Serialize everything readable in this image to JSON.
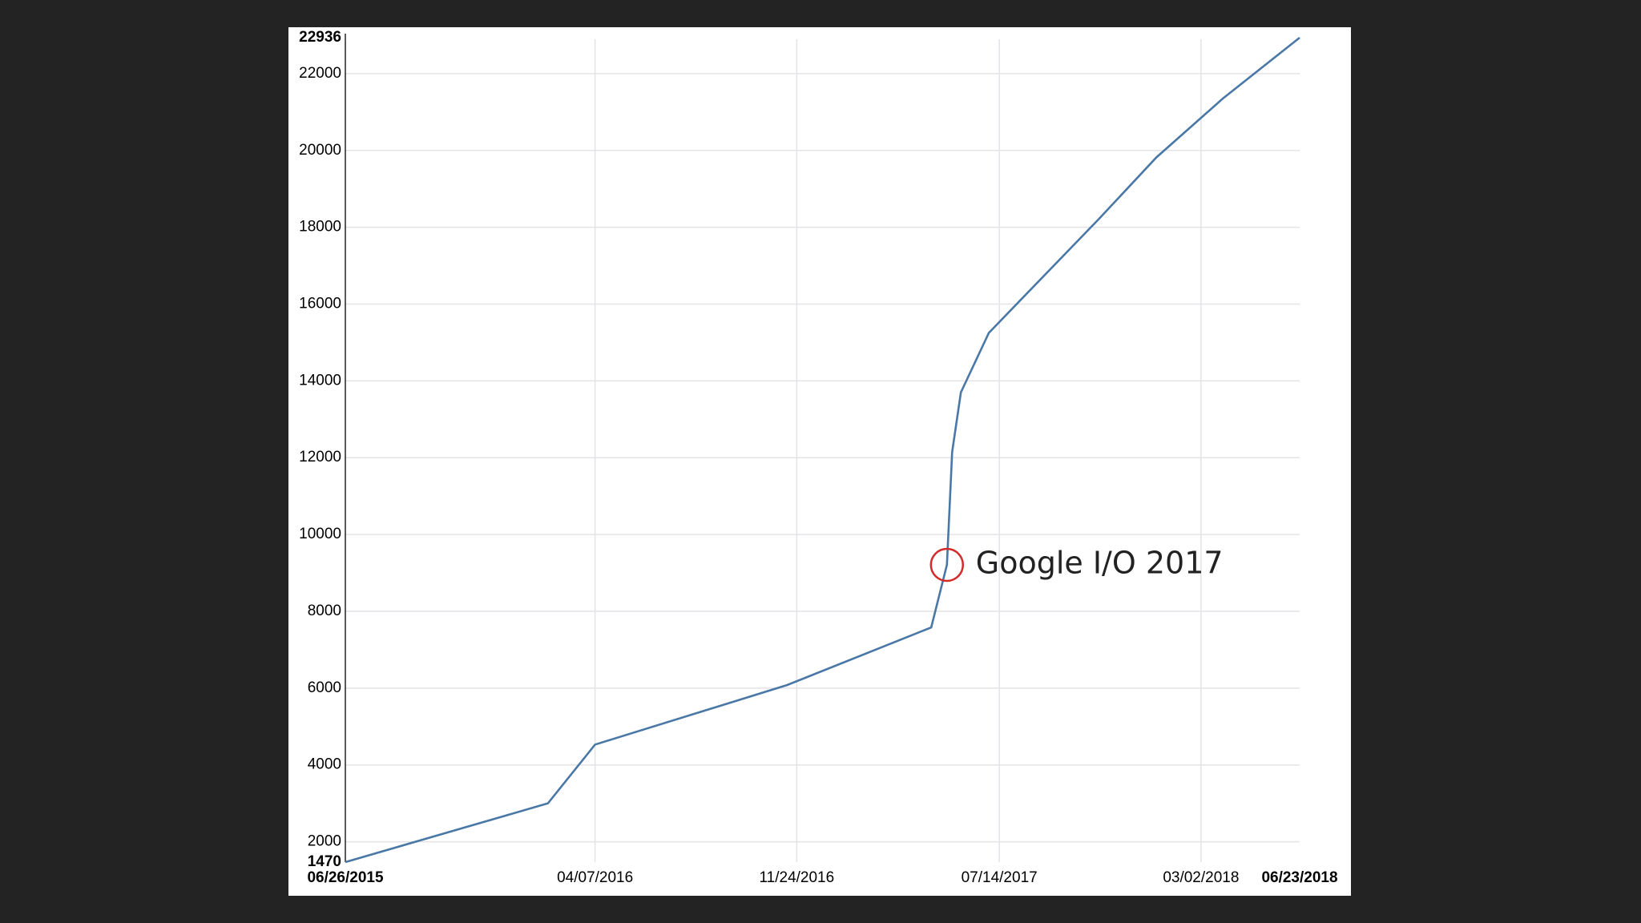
{
  "chart_data": {
    "type": "line",
    "x": [
      "2015-06-26",
      "2016-02-13",
      "2016-04-07",
      "2016-11-13",
      "2017-04-27",
      "2017-05-15",
      "2017-05-21",
      "2017-05-31",
      "2017-07-02",
      "2017-11-04",
      "2018-01-10",
      "2018-03-27",
      "2018-06-23"
    ],
    "series": [
      {
        "color": "#4a78a6",
        "values": [
          1470,
          3000,
          4530,
          6080,
          7580,
          9210,
          12150,
          13700,
          15250,
          18190,
          19820,
          21350,
          22936
        ]
      }
    ],
    "xlim": [
      "2015-06-26",
      "2018-06-23"
    ],
    "xticks": [
      {
        "value": "2015-06-26",
        "label": "06/26/2015"
      },
      {
        "value": "2016-04-07",
        "label": "04/07/2016"
      },
      {
        "value": "2016-11-24",
        "label": "11/24/2016"
      },
      {
        "value": "2017-07-14",
        "label": "07/14/2017"
      },
      {
        "value": "2018-03-02",
        "label": "03/02/2018"
      },
      {
        "value": "2018-06-23",
        "label": "06/23/2018"
      }
    ],
    "ylim": [
      1470,
      22936
    ],
    "yticks": [
      1470,
      2000,
      4000,
      6000,
      8000,
      10000,
      12000,
      14000,
      16000,
      18000,
      20000,
      22000,
      22936
    ],
    "grid": true,
    "annotation": {
      "text": "Google I/O 2017",
      "x": "2017-05-15",
      "y": 9210,
      "color": "#d42a2a"
    }
  }
}
